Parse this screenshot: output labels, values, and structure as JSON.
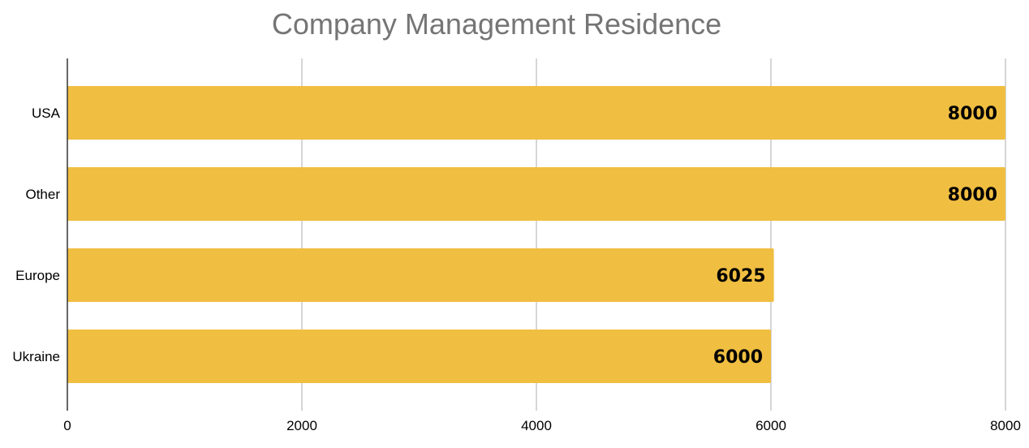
{
  "chart_data": {
    "type": "bar",
    "orientation": "horizontal",
    "title": "Company Management Residence",
    "xlabel": "",
    "ylabel": "",
    "categories": [
      "USA",
      "Other",
      "Europe",
      "Ukraine"
    ],
    "values": [
      8000,
      8000,
      6025,
      6000
    ],
    "data_labels": [
      "8000",
      "8000",
      "6025",
      "6000"
    ],
    "xlim": [
      0,
      8000
    ],
    "x_ticks": [
      "0",
      "2000",
      "4000",
      "6000",
      "8000"
    ],
    "x_tick_values": [
      0,
      2000,
      4000,
      6000,
      8000
    ],
    "grid": "vertical",
    "legend": "none",
    "colors": {
      "bar": "#F0BE41",
      "grid": "#C8C8C8",
      "axis": "#333333",
      "title": "#757575"
    }
  }
}
